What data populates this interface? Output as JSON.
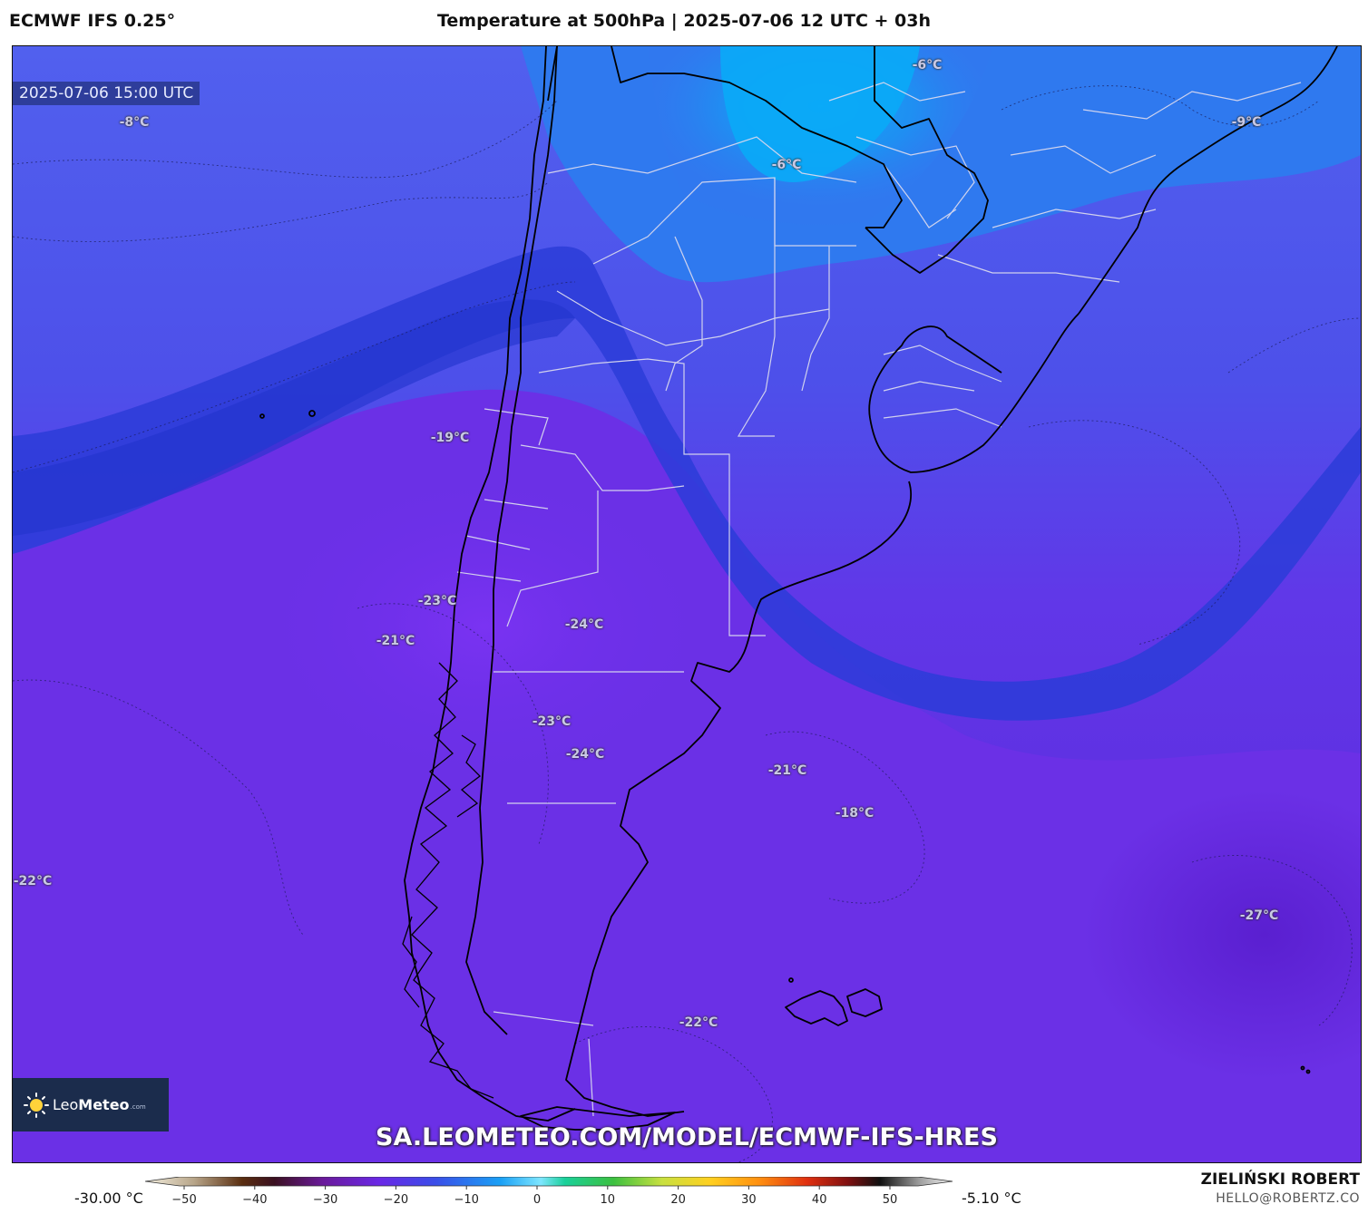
{
  "header": {
    "model": "ECMWF IFS 0.25°",
    "title": "Temperature at 500hPa | 2025-07-06 12 UTC + 03h"
  },
  "map": {
    "valid_time": "2025-07-06 15:00 UTC",
    "temperature_labels": [
      "-6°C",
      "-8°C",
      "-9°C",
      "-6°C",
      "-19°C",
      "-23°C",
      "-21°C",
      "-24°C",
      "-23°C",
      "-24°C",
      "-21°C",
      "-18°C",
      "-22°C",
      "-27°C",
      "-22°C"
    ],
    "watermark_url": "SA.LEOMETEO.COM/MODEL/ECMWF-IFS-HRES",
    "logo": {
      "name_light": "Leo",
      "name_bold": "Meteo",
      "tld": ".com",
      "icon": "sun-icon"
    },
    "colors": {
      "warm_north": "#1aa3f5",
      "mid_blue": "#4a58ee",
      "cold_jet": "#2b3fd6",
      "cold_south": "#6a2de8",
      "coast_line": "#000000",
      "border_line": "#d8d8ee"
    }
  },
  "colorbar": {
    "min_label": "-30.00 °C",
    "max_label": "-5.10 °C",
    "ticks": [
      "−50",
      "−40",
      "−30",
      "−20",
      "−10",
      "0",
      "10",
      "20",
      "30",
      "40",
      "50"
    ]
  },
  "credit": {
    "author": "ZIELIŃSKI ROBERT",
    "email": "HELLO@ROBERTZ.CO"
  }
}
